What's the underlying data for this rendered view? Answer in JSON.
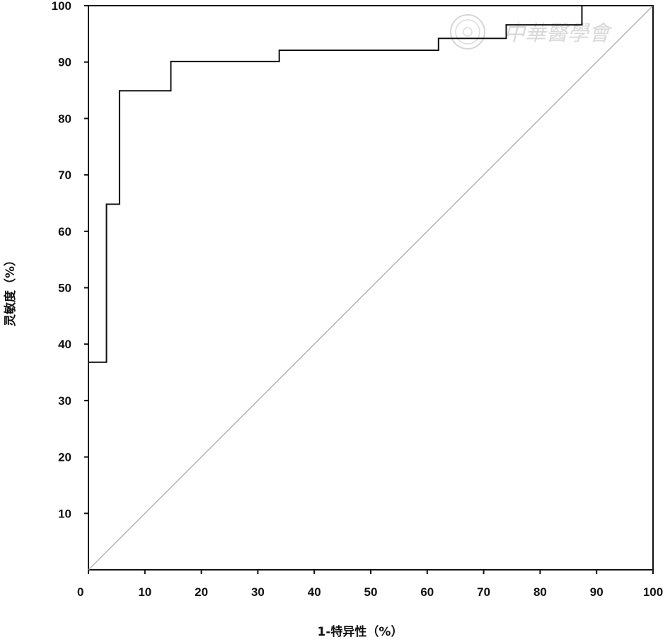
{
  "chart_data": {
    "type": "line",
    "xlabel": "1-特异性（%）",
    "ylabel": "灵敏度（%）",
    "xlim": [
      0,
      100
    ],
    "ylim": [
      0,
      100
    ],
    "x_ticks": [
      "0",
      "10",
      "20",
      "30",
      "40",
      "50",
      "60",
      "70",
      "80",
      "90",
      "100"
    ],
    "y_ticks": [
      "10",
      "20",
      "30",
      "40",
      "50",
      "60",
      "70",
      "80",
      "90",
      "100"
    ],
    "grid": false,
    "series": [
      {
        "style": "step",
        "color": "#111111",
        "x": [
          0,
          3.2,
          3.2,
          5.5,
          5.5,
          14.6,
          14.6,
          33.8,
          33.8,
          62.0,
          62.0,
          74.0,
          74.0,
          87.4,
          87.4,
          100
        ],
        "y": [
          36.8,
          36.8,
          64.8,
          64.8,
          84.9,
          84.9,
          90.1,
          90.1,
          92.1,
          92.1,
          94.2,
          94.2,
          96.6,
          96.6,
          100,
          100
        ]
      },
      {
        "style": "reference",
        "color": "#b5b5b5",
        "x": [
          0,
          100
        ],
        "y": [
          0,
          100
        ]
      }
    ]
  },
  "watermark": {
    "text": "中華醫學會",
    "seal_icon": "seal-icon",
    "color": "#d8d8d8"
  }
}
